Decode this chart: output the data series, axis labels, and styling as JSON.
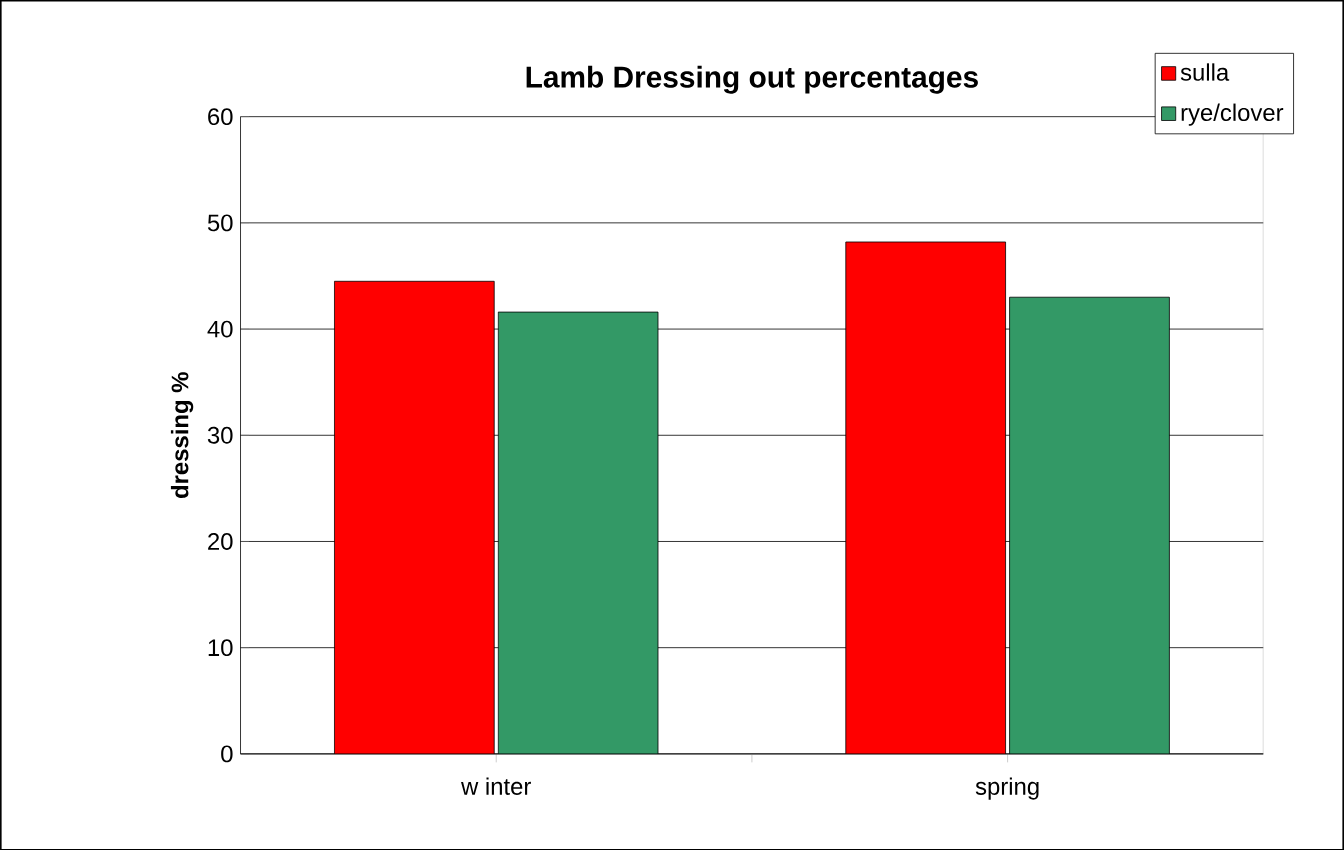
{
  "chart_data": {
    "type": "bar",
    "title": "Lamb Dressing out percentages",
    "ylabel": "dressing %",
    "categories": [
      "w inter",
      "spring"
    ],
    "series": [
      {
        "name": "sulla",
        "color": "#ff0000",
        "values": [
          44.5,
          48.2
        ]
      },
      {
        "name": "rye/clover",
        "color": "#339966",
        "values": [
          41.6,
          43.0
        ]
      }
    ],
    "ylim": [
      0,
      60
    ],
    "yticks": [
      0,
      10,
      20,
      30,
      40,
      50,
      60
    ],
    "grid": "y",
    "legend": "top right"
  }
}
